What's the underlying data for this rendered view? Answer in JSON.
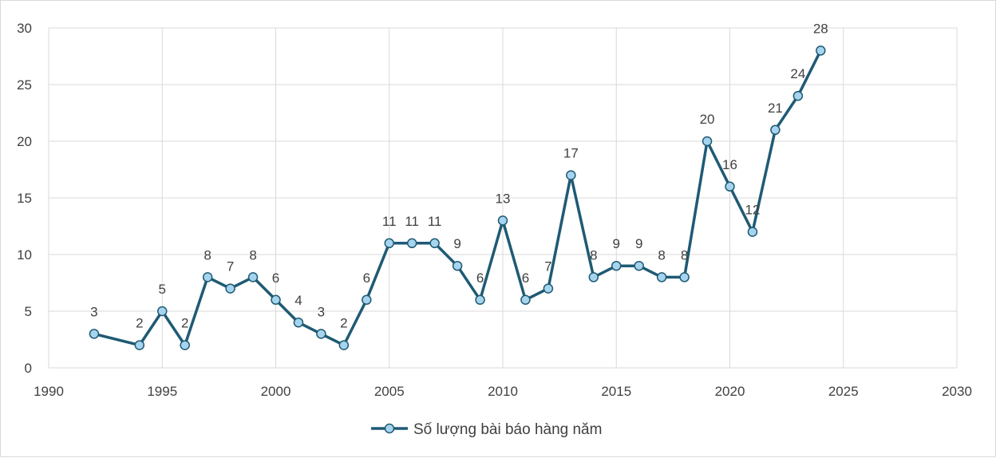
{
  "chart_data": {
    "type": "scatter",
    "mode": "lines+markers",
    "title": "",
    "xlabel": "",
    "ylabel": "",
    "xlim": [
      1990,
      2030
    ],
    "ylim": [
      0,
      30
    ],
    "x_ticks": [
      1990,
      1995,
      2000,
      2005,
      2010,
      2015,
      2020,
      2025,
      2030
    ],
    "y_ticks": [
      0,
      5,
      10,
      15,
      20,
      25,
      30
    ],
    "grid": true,
    "legend_position": "bottom",
    "data_labels": true,
    "series": [
      {
        "name": "Số lượng bài báo hàng năm",
        "color": "#1f5a74",
        "marker_color": "#a6d4ee",
        "x": [
          1992,
          1994,
          1995,
          1996,
          1997,
          1998,
          1999,
          2000,
          2001,
          2002,
          2003,
          2004,
          2005,
          2006,
          2007,
          2008,
          2009,
          2010,
          2011,
          2012,
          2013,
          2014,
          2015,
          2016,
          2017,
          2018,
          2019,
          2020,
          2021,
          2022,
          2023,
          2024
        ],
        "y": [
          3,
          2,
          5,
          2,
          8,
          7,
          8,
          6,
          4,
          3,
          2,
          6,
          11,
          11,
          11,
          9,
          6,
          13,
          6,
          7,
          17,
          8,
          9,
          9,
          8,
          8,
          20,
          16,
          12,
          21,
          24,
          28
        ]
      }
    ]
  }
}
